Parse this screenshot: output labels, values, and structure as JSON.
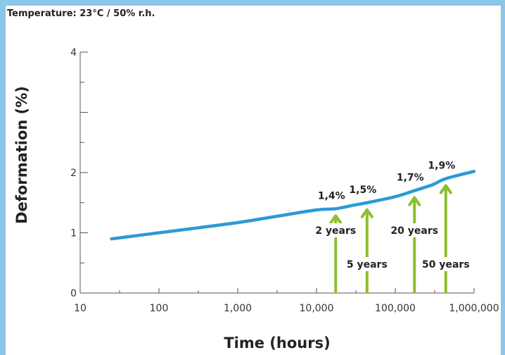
{
  "chart_data": {
    "type": "line",
    "title": "Temperature: 23°C / 50% r.h.",
    "xlabel": "Time (hours)",
    "ylabel": "Deformation (%)",
    "x_scale": "log",
    "xlim": [
      10,
      1000000
    ],
    "ylim": [
      0,
      4
    ],
    "x_ticks": [
      10,
      100,
      1000,
      10000,
      100000,
      1000000
    ],
    "x_tick_labels": [
      "10",
      "100",
      "1,000",
      "10,000",
      "100,000",
      "1,000,000"
    ],
    "y_ticks": [
      0,
      1,
      2,
      4
    ],
    "y_tick_labels": [
      "0",
      "1",
      "2",
      "4"
    ],
    "grid": false,
    "series": [
      {
        "color": "#2b9ad6",
        "x": [
          25,
          50,
          100,
          300,
          1000,
          3000,
          10000,
          17520,
          30000,
          43800,
          100000,
          175200,
          300000,
          438000,
          1000000
        ],
        "y": [
          0.9,
          0.95,
          1.0,
          1.08,
          1.17,
          1.27,
          1.38,
          1.4,
          1.46,
          1.5,
          1.6,
          1.7,
          1.8,
          1.9,
          2.02
        ]
      }
    ],
    "annotations": [
      {
        "x": 17520,
        "y": 1.4,
        "value_label": "1,4%",
        "period_label": "2 years"
      },
      {
        "x": 43800,
        "y": 1.5,
        "value_label": "1,5%",
        "period_label": "5 years"
      },
      {
        "x": 175200,
        "y": 1.7,
        "value_label": "1,7%",
        "period_label": "20 years"
      },
      {
        "x": 438000,
        "y": 1.9,
        "value_label": "1,9%",
        "period_label": "50 years"
      }
    ],
    "arrow_color": "#8cbf2e"
  }
}
